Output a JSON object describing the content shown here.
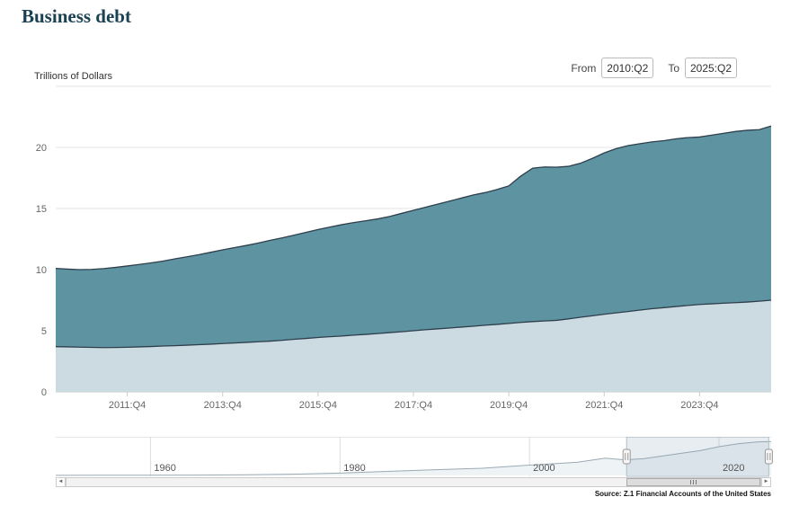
{
  "header": {
    "title": "Business debt",
    "y_axis_title": "Trillions of Dollars",
    "range": {
      "from_label": "From",
      "from_value": "2010:Q2",
      "to_label": "To",
      "to_value": "2025:Q2"
    }
  },
  "source": "Source: Z.1 Financial Accounts of the United States",
  "chart_data": {
    "type": "area",
    "stacked": true,
    "title": "Business debt",
    "ylabel": "Trillions of Dollars",
    "x_start": "2010:Q2",
    "x_end": "2025:Q2",
    "frequency": "quarterly",
    "ylim": [
      0,
      25
    ],
    "y_ticks": [
      0,
      5,
      10,
      15,
      20
    ],
    "x_tick_labels": [
      "2011:Q4",
      "2013:Q4",
      "2015:Q4",
      "2017:Q4",
      "2019:Q4",
      "2021:Q4",
      "2023:Q4"
    ],
    "x_tick_indices": [
      6,
      14,
      22,
      30,
      38,
      46,
      54
    ],
    "grid": "horizontal",
    "legend": "none",
    "series": [
      {
        "name": "lower band",
        "color": "#ccdbe1",
        "line_color": "#2e3f4c",
        "values": [
          3.7,
          3.68,
          3.66,
          3.64,
          3.62,
          3.63,
          3.65,
          3.68,
          3.71,
          3.75,
          3.78,
          3.82,
          3.86,
          3.9,
          3.95,
          4.0,
          4.05,
          4.1,
          4.15,
          4.22,
          4.3,
          4.37,
          4.45,
          4.51,
          4.57,
          4.64,
          4.7,
          4.77,
          4.85,
          4.92,
          5.0,
          5.08,
          5.15,
          5.22,
          5.3,
          5.37,
          5.45,
          5.52,
          5.6,
          5.68,
          5.75,
          5.8,
          5.85,
          5.97,
          6.1,
          6.22,
          6.35,
          6.46,
          6.57,
          6.69,
          6.8,
          6.89,
          6.98,
          7.07,
          7.15,
          7.2,
          7.25,
          7.3,
          7.35,
          7.42,
          7.5
        ]
      },
      {
        "name": "upper band",
        "color": "#5e93a2",
        "line_color": "#2e3f4c",
        "values": [
          6.4,
          6.36,
          6.34,
          6.38,
          6.46,
          6.55,
          6.65,
          6.74,
          6.84,
          6.95,
          7.1,
          7.23,
          7.36,
          7.52,
          7.67,
          7.8,
          7.93,
          8.08,
          8.25,
          8.38,
          8.52,
          8.68,
          8.83,
          8.97,
          9.11,
          9.21,
          9.3,
          9.38,
          9.5,
          9.68,
          9.85,
          10.02,
          10.2,
          10.38,
          10.55,
          10.73,
          10.85,
          11.03,
          11.25,
          11.97,
          12.55,
          12.6,
          12.53,
          12.48,
          12.6,
          12.88,
          13.2,
          13.44,
          13.58,
          13.61,
          13.65,
          13.66,
          13.72,
          13.73,
          13.7,
          13.8,
          13.9,
          14.0,
          14.05,
          14.03,
          14.25
        ]
      }
    ]
  },
  "navigator": {
    "x_range": [
      1950,
      2025.5
    ],
    "ymax": 23,
    "x_ticks": [
      1960,
      1980,
      2000,
      2020
    ],
    "area_fill": "#eef3f6",
    "line_color": "#9aaab4",
    "selection_fill": "rgba(125,155,180,0.18)",
    "selection_outline": "#b0bec8",
    "series": {
      "x": [
        1950,
        1955,
        1960,
        1965,
        1970,
        1975,
        1980,
        1985,
        1990,
        1995,
        2000,
        2005,
        2008,
        2010,
        2012,
        2015,
        2018,
        2020,
        2022,
        2024,
        2025.5
      ],
      "values": [
        0.07,
        0.1,
        0.15,
        0.25,
        0.45,
        0.8,
        1.5,
        2.6,
        3.7,
        4.6,
        6.6,
        8.4,
        11.1,
        10.0,
        10.7,
        13.28,
        15.85,
        18.4,
        20.3,
        21.4,
        21.75
      ]
    }
  },
  "scrollbar": {
    "left_arrow": "◄",
    "right_arrow": "►"
  }
}
